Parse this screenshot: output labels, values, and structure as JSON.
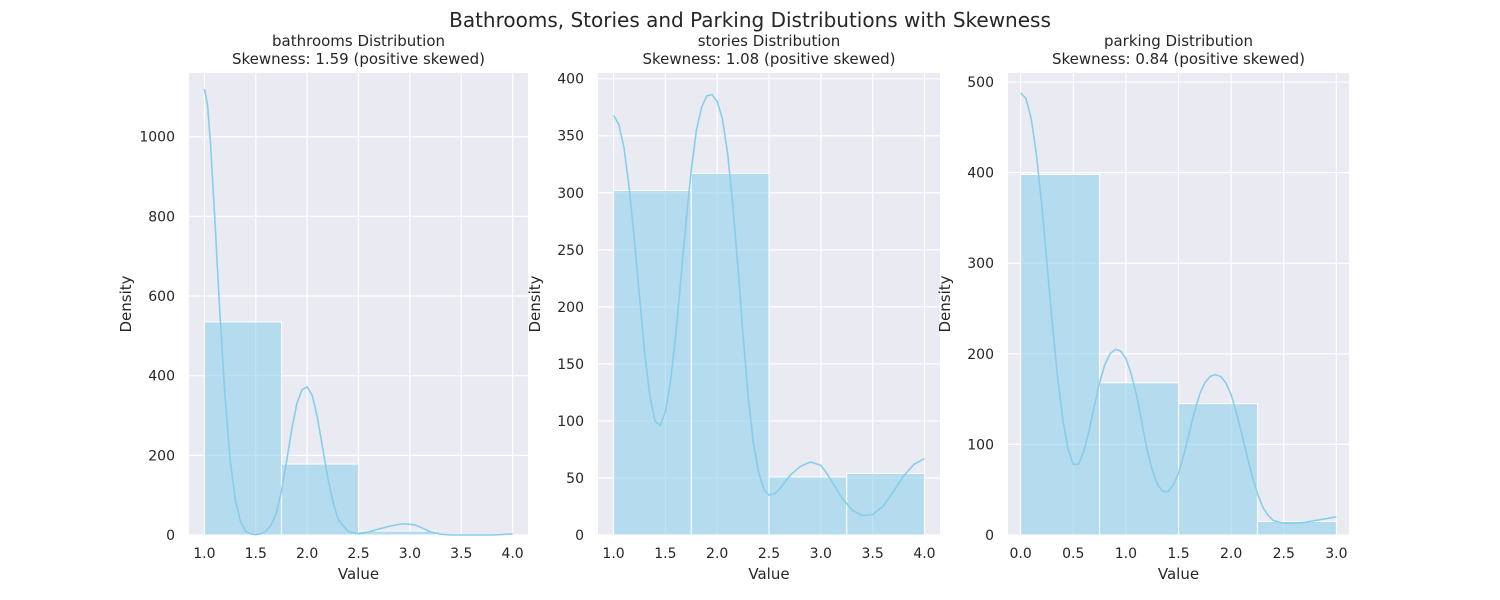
{
  "colors": {
    "bar": "#87CEEB",
    "kde": "#87CEEB",
    "panel_bg": "#EAEAF2",
    "grid": "#FFFFFF"
  },
  "chart_data": {
    "suptitle": "Bathrooms, Stories and Parking Distributions with Skewness",
    "panels": [
      {
        "type": "bar",
        "title": "bathrooms Distribution",
        "subtitle": "Skewness: 1.59 (positive skewed)",
        "xlabel": "Value",
        "ylabel": "Density",
        "xlim": [
          0.85,
          4.15
        ],
        "ylim": [
          0,
          1160
        ],
        "xticks": [
          1.0,
          1.5,
          2.0,
          2.5,
          3.0,
          3.5,
          4.0
        ],
        "xtick_labels": [
          "1.0",
          "1.5",
          "2.0",
          "2.5",
          "3.0",
          "3.5",
          "4.0"
        ],
        "yticks": [
          0,
          200,
          400,
          600,
          800,
          1000
        ],
        "ytick_labels": [
          "0",
          "200",
          "400",
          "600",
          "800",
          "1000"
        ],
        "bins": [
          [
            1.0,
            1.75
          ],
          [
            1.75,
            2.5
          ],
          [
            2.5,
            3.25
          ],
          [
            3.25,
            4.0
          ]
        ],
        "values": [
          535,
          178,
          10,
          1
        ],
        "kde": {
          "x": [
            1.0,
            1.03,
            1.06,
            1.1,
            1.15,
            1.2,
            1.25,
            1.3,
            1.35,
            1.4,
            1.45,
            1.5,
            1.55,
            1.6,
            1.65,
            1.7,
            1.75,
            1.8,
            1.85,
            1.9,
            1.95,
            2.0,
            2.05,
            2.1,
            2.15,
            2.2,
            2.25,
            2.3,
            2.4,
            2.5,
            2.6,
            2.7,
            2.8,
            2.9,
            2.95,
            3.0,
            3.05,
            3.1,
            3.2,
            3.3,
            3.4,
            3.5,
            3.6,
            3.7,
            3.8,
            3.9,
            4.0
          ],
          "y": [
            1120,
            1080,
            980,
            800,
            560,
            350,
            190,
            90,
            35,
            10,
            3,
            1,
            3,
            10,
            25,
            55,
            110,
            185,
            265,
            330,
            365,
            372,
            350,
            295,
            220,
            145,
            85,
            40,
            8,
            3,
            8,
            15,
            22,
            27,
            28,
            27,
            25,
            20,
            8,
            2,
            0,
            0,
            0,
            0,
            0,
            1,
            3
          ]
        }
      },
      {
        "type": "bar",
        "title": "stories Distribution",
        "subtitle": "Skewness: 1.08 (positive skewed)",
        "xlabel": "Value",
        "ylabel": "Density",
        "xlim": [
          0.85,
          4.15
        ],
        "ylim": [
          0,
          405
        ],
        "xticks": [
          1.0,
          1.5,
          2.0,
          2.5,
          3.0,
          3.5,
          4.0
        ],
        "xtick_labels": [
          "1.0",
          "1.5",
          "2.0",
          "2.5",
          "3.0",
          "3.5",
          "4.0"
        ],
        "yticks": [
          0,
          50,
          100,
          150,
          200,
          250,
          300,
          350,
          400
        ],
        "ytick_labels": [
          "0",
          "50",
          "100",
          "150",
          "200",
          "250",
          "300",
          "350",
          "400"
        ],
        "bins": [
          [
            1.0,
            1.75
          ],
          [
            1.75,
            2.5
          ],
          [
            2.5,
            3.25
          ],
          [
            3.25,
            4.0
          ]
        ],
        "values": [
          302,
          317,
          51,
          54
        ],
        "kde": {
          "x": [
            1.0,
            1.05,
            1.1,
            1.15,
            1.2,
            1.25,
            1.3,
            1.35,
            1.4,
            1.45,
            1.5,
            1.55,
            1.6,
            1.65,
            1.7,
            1.75,
            1.8,
            1.85,
            1.9,
            1.95,
            2.0,
            2.05,
            2.1,
            2.15,
            2.2,
            2.25,
            2.3,
            2.35,
            2.4,
            2.45,
            2.5,
            2.55,
            2.6,
            2.65,
            2.7,
            2.8,
            2.9,
            3.0,
            3.05,
            3.1,
            3.2,
            3.3,
            3.4,
            3.5,
            3.6,
            3.7,
            3.8,
            3.9,
            4.0
          ],
          "y": [
            368,
            360,
            340,
            305,
            260,
            210,
            160,
            122,
            100,
            96,
            108,
            135,
            175,
            225,
            275,
            320,
            355,
            375,
            385,
            386,
            380,
            365,
            335,
            290,
            235,
            175,
            120,
            80,
            55,
            40,
            35,
            36,
            40,
            46,
            52,
            60,
            64,
            61,
            55,
            48,
            33,
            22,
            17,
            18,
            25,
            38,
            52,
            62,
            67
          ]
        }
      },
      {
        "type": "bar",
        "title": "parking Distribution",
        "subtitle": "Skewness: 0.84 (positive skewed)",
        "xlabel": "Value",
        "ylabel": "Density",
        "xlim": [
          -0.12,
          3.12
        ],
        "ylim": [
          0,
          510
        ],
        "xticks": [
          0.0,
          0.5,
          1.0,
          1.5,
          2.0,
          2.5,
          3.0
        ],
        "xtick_labels": [
          "0.0",
          "0.5",
          "1.0",
          "1.5",
          "2.0",
          "2.5",
          "3.0"
        ],
        "yticks": [
          0,
          100,
          200,
          300,
          400,
          500
        ],
        "ytick_labels": [
          "0",
          "100",
          "200",
          "300",
          "400",
          "500"
        ],
        "bins": [
          [
            0.0,
            0.75
          ],
          [
            0.75,
            1.5
          ],
          [
            1.5,
            2.25
          ],
          [
            2.25,
            3.0
          ]
        ],
        "values": [
          398,
          168,
          145,
          15
        ],
        "kde": {
          "x": [
            0.0,
            0.05,
            0.1,
            0.15,
            0.2,
            0.25,
            0.3,
            0.35,
            0.4,
            0.45,
            0.5,
            0.55,
            0.6,
            0.65,
            0.7,
            0.75,
            0.8,
            0.85,
            0.9,
            0.95,
            1.0,
            1.05,
            1.1,
            1.15,
            1.2,
            1.25,
            1.3,
            1.35,
            1.4,
            1.45,
            1.5,
            1.55,
            1.6,
            1.65,
            1.7,
            1.75,
            1.8,
            1.85,
            1.9,
            1.95,
            2.0,
            2.05,
            2.1,
            2.15,
            2.2,
            2.25,
            2.3,
            2.35,
            2.4,
            2.5,
            2.6,
            2.7,
            2.8,
            2.9,
            3.0
          ],
          "y": [
            488,
            482,
            460,
            420,
            365,
            300,
            235,
            175,
            128,
            95,
            78,
            78,
            92,
            115,
            142,
            168,
            188,
            200,
            205,
            203,
            195,
            178,
            155,
            125,
            95,
            72,
            56,
            48,
            48,
            55,
            68,
            88,
            112,
            135,
            155,
            168,
            175,
            177,
            175,
            168,
            155,
            135,
            112,
            88,
            65,
            46,
            31,
            22,
            16,
            13,
            13,
            14,
            16,
            18,
            20
          ]
        }
      }
    ]
  }
}
